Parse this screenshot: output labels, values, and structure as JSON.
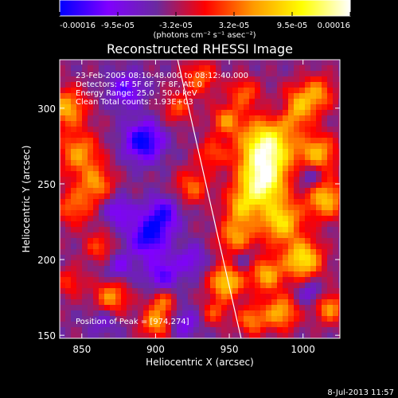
{
  "chart_data": {
    "type": "heatmap",
    "title": "Reconstructed RHESSI Image",
    "xlabel": "Heliocentric X (arcsec)",
    "ylabel": "Heliocentric Y (arcsec)",
    "xlim": [
      835,
      1025
    ],
    "ylim": [
      148,
      332
    ],
    "xticks": [
      850,
      900,
      950,
      1000
    ],
    "yticks": [
      150,
      200,
      250,
      300
    ],
    "colorbar": {
      "min": -0.00016,
      "max": 0.00016,
      "tick_labels": [
        "-0.00016",
        "-9.5e-05",
        "-3.2e-05",
        "3.2e-05",
        "9.5e-05",
        "0.00016"
      ],
      "unit_label": "(photons cm⁻² s⁻¹ asec⁻²)",
      "colormap": [
        "#0000ff",
        "#8000ff",
        "#6a2aa0",
        "#ff0000",
        "#ff9a00",
        "#ffff00",
        "#ffffff"
      ]
    },
    "annotations": [
      "23-Feb-2005 08:10:48.000 to 08:12:40.000",
      "Detectors: 4F 5F 6F 7F 8F, Att 0",
      "Energy Range: 25.0 - 50.0 keV",
      "Clean    Total counts: 1.93E+03"
    ],
    "peak_label": "Position of Peak = [974,274]",
    "limb_line": [
      [
        915,
        332
      ],
      [
        958,
        148
      ]
    ],
    "blobs": [
      {
        "x": 840,
        "y": 300,
        "v": 1.0,
        "s": 9
      },
      {
        "x": 848,
        "y": 270,
        "v": 0.9,
        "s": 10
      },
      {
        "x": 845,
        "y": 235,
        "v": 0.7,
        "s": 9
      },
      {
        "x": 860,
        "y": 250,
        "v": 0.8,
        "s": 8
      },
      {
        "x": 862,
        "y": 208,
        "v": 0.6,
        "s": 7
      },
      {
        "x": 842,
        "y": 185,
        "v": 0.5,
        "s": 7
      },
      {
        "x": 870,
        "y": 175,
        "v": 0.9,
        "s": 8
      },
      {
        "x": 900,
        "y": 158,
        "v": 0.9,
        "s": 7
      },
      {
        "x": 905,
        "y": 172,
        "v": 0.7,
        "s": 6
      },
      {
        "x": 930,
        "y": 320,
        "v": 0.7,
        "s": 8
      },
      {
        "x": 915,
        "y": 300,
        "v": 0.6,
        "s": 7
      },
      {
        "x": 925,
        "y": 248,
        "v": 0.7,
        "s": 8
      },
      {
        "x": 938,
        "y": 270,
        "v": 0.6,
        "s": 7
      },
      {
        "x": 948,
        "y": 292,
        "v": 0.8,
        "s": 7
      },
      {
        "x": 960,
        "y": 310,
        "v": 0.7,
        "s": 7
      },
      {
        "x": 955,
        "y": 215,
        "v": 0.9,
        "s": 9
      },
      {
        "x": 948,
        "y": 185,
        "v": 1.2,
        "s": 8
      },
      {
        "x": 958,
        "y": 235,
        "v": 0.8,
        "s": 8
      },
      {
        "x": 975,
        "y": 274,
        "v": 1.7,
        "s": 13
      },
      {
        "x": 972,
        "y": 250,
        "v": 1.5,
        "s": 11
      },
      {
        "x": 985,
        "y": 225,
        "v": 1.2,
        "s": 10
      },
      {
        "x": 995,
        "y": 300,
        "v": 1.0,
        "s": 9
      },
      {
        "x": 1010,
        "y": 270,
        "v": 1.0,
        "s": 9
      },
      {
        "x": 1015,
        "y": 240,
        "v": 1.1,
        "s": 9
      },
      {
        "x": 1000,
        "y": 200,
        "v": 1.3,
        "s": 9
      },
      {
        "x": 975,
        "y": 190,
        "v": 1.0,
        "s": 8
      },
      {
        "x": 985,
        "y": 165,
        "v": 1.0,
        "s": 8
      },
      {
        "x": 1018,
        "y": 168,
        "v": 0.9,
        "s": 7
      },
      {
        "x": 1010,
        "y": 310,
        "v": 0.8,
        "s": 8
      },
      {
        "x": 965,
        "y": 160,
        "v": 0.8,
        "s": 7
      },
      {
        "x": 940,
        "y": 165,
        "v": 0.6,
        "s": 6
      },
      {
        "x": 892,
        "y": 278,
        "v": -1.1,
        "s": 9
      },
      {
        "x": 880,
        "y": 312,
        "v": -0.7,
        "s": 8
      },
      {
        "x": 895,
        "y": 215,
        "v": -1.0,
        "s": 9
      },
      {
        "x": 905,
        "y": 230,
        "v": -0.8,
        "s": 8
      },
      {
        "x": 875,
        "y": 232,
        "v": -0.6,
        "s": 7
      },
      {
        "x": 905,
        "y": 190,
        "v": -0.7,
        "s": 8
      },
      {
        "x": 875,
        "y": 195,
        "v": -0.5,
        "s": 7
      },
      {
        "x": 925,
        "y": 200,
        "v": -0.5,
        "s": 7
      },
      {
        "x": 865,
        "y": 160,
        "v": -0.4,
        "s": 7
      },
      {
        "x": 920,
        "y": 158,
        "v": -0.5,
        "s": 7
      },
      {
        "x": 1005,
        "y": 255,
        "v": -0.6,
        "s": 6
      },
      {
        "x": 985,
        "y": 300,
        "v": -0.5,
        "s": 6
      },
      {
        "x": 1005,
        "y": 178,
        "v": -0.5,
        "s": 6
      },
      {
        "x": 960,
        "y": 200,
        "v": -0.4,
        "s": 6
      }
    ]
  },
  "footer": {
    "date": "8-Jul-2013 11:57"
  }
}
